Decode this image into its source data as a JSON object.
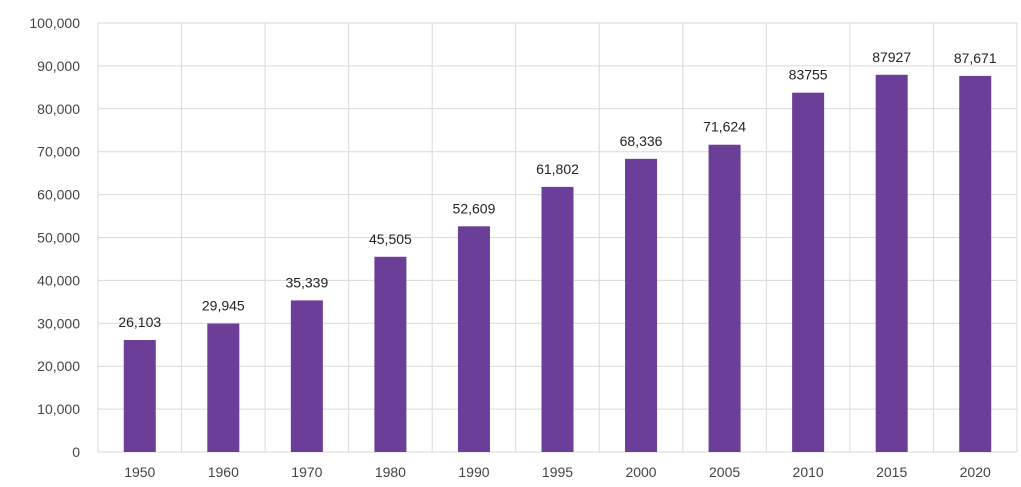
{
  "chart_data": {
    "type": "bar",
    "title": "",
    "xlabel": "",
    "ylabel": "",
    "categories": [
      "1950",
      "1960",
      "1970",
      "1980",
      "1990",
      "1995",
      "2000",
      "2005",
      "2010",
      "2015",
      "2020"
    ],
    "values": [
      26103,
      29945,
      35339,
      45505,
      52609,
      61802,
      68336,
      71624,
      83755,
      87927,
      87671
    ],
    "data_labels": [
      "26,103",
      "29,945",
      "35,339",
      "45,505",
      "52,609",
      "61,802",
      "68,336",
      "71,624",
      "83755",
      "87927",
      "87,671"
    ],
    "ylim": [
      0,
      100000
    ],
    "yticks": [
      "0",
      "10,000",
      "20,000",
      "30,000",
      "40,000",
      "50,000",
      "60,000",
      "70,000",
      "80,000",
      "90,000",
      "100,000"
    ],
    "grid": "horizontal and vertical",
    "legend": "none",
    "colors": {
      "bar": "#6B3E97",
      "grid": "#d9d9d9"
    }
  }
}
